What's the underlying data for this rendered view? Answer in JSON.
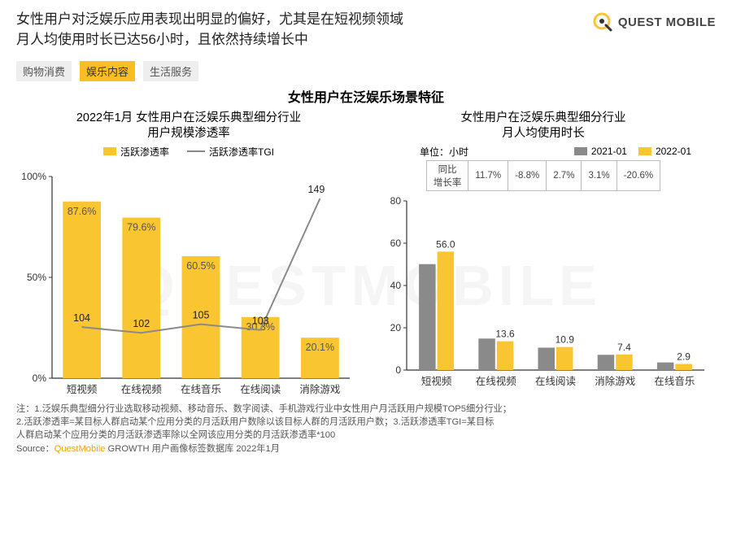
{
  "header": {
    "title_line1": "女性用户对泛娱乐应用表现出明显的偏好，尤其是在短视频领域",
    "title_line2": "月人均使用时长已达56小时，且依然持续增长中",
    "logo_text": "QUEST MOBILE",
    "watermark": "QUESTMOBILE"
  },
  "tabs": [
    {
      "label": "购物消费",
      "active": false
    },
    {
      "label": "娱乐内容",
      "active": true
    },
    {
      "label": "生活服务",
      "active": false
    }
  ],
  "section_title": "女性用户在泛娱乐场景特征",
  "left_chart": {
    "title_line1": "2022年1月 女性用户在泛娱乐典型细分行业",
    "title_line2": "用户规模渗透率",
    "legend_bar": "活跃渗透率",
    "legend_line": "活跃渗透率TGI",
    "y_label_max": "100%",
    "y_label_mid": "50%",
    "y_label_min": "0%",
    "categories": [
      "短视频",
      "在线视频",
      "在线音乐",
      "在线阅读",
      "消除游戏"
    ],
    "bar_values": [
      87.6,
      79.6,
      60.5,
      30.3,
      20.1
    ],
    "bar_labels": [
      "87.6%",
      "79.6%",
      "60.5%",
      "30.3%",
      "20.1%"
    ],
    "line_values": [
      104,
      102,
      105,
      103,
      149
    ],
    "line_labels": [
      "104",
      "102",
      "105",
      "103",
      "149"
    ],
    "y_max": 100,
    "bar_color": "#f9c530",
    "line_color": "#8a8a8a",
    "axis_color": "#333",
    "bar_label_color": "#555",
    "line_label_color": "#222"
  },
  "right_chart": {
    "title_line1": "女性用户在泛娱乐典型细分行业",
    "title_line2": "月人均使用时长",
    "unit_label": "单位：小时",
    "legend_a": "2021-01",
    "legend_b": "2022-01",
    "growth_header": "同比\n增长率",
    "growth_values": [
      "11.7%",
      "-8.8%",
      "2.7%",
      "3.1%",
      "-20.6%"
    ],
    "categories": [
      "短视频",
      "在线视频",
      "在线阅读",
      "消除游戏",
      "在线音乐"
    ],
    "values_a": [
      50.1,
      14.9,
      10.6,
      7.2,
      3.6
    ],
    "values_b": [
      56.0,
      13.6,
      10.9,
      7.4,
      2.9
    ],
    "value_b_labels": [
      "56.0",
      "13.6",
      "10.9",
      "7.4",
      "2.9"
    ],
    "y_max": 80,
    "y_ticks": [
      0,
      20,
      40,
      60,
      80
    ],
    "color_a": "#8a8a8a",
    "color_b": "#f9c530",
    "axis_color": "#333",
    "label_color": "#333"
  },
  "footnotes": {
    "n1": "注：1.泛娱乐典型细分行业选取移动视频、移动音乐、数字阅读、手机游戏行业中女性用户月活跃用户规模TOP5细分行业；",
    "n2": "2.活跃渗透率=某目标人群启动某个应用分类的月活跃用户数除以该目标人群的月活跃用户数；3.活跃渗透率TGI=某目标",
    "n3": "人群启动某个应用分类的月活跃渗透率除以全网该应用分类的月活跃渗透率*100",
    "source_prefix": "Source：",
    "source_orange": "QuestMobile",
    "source_rest": " GROWTH 用户画像标签数据库 2022年1月"
  }
}
